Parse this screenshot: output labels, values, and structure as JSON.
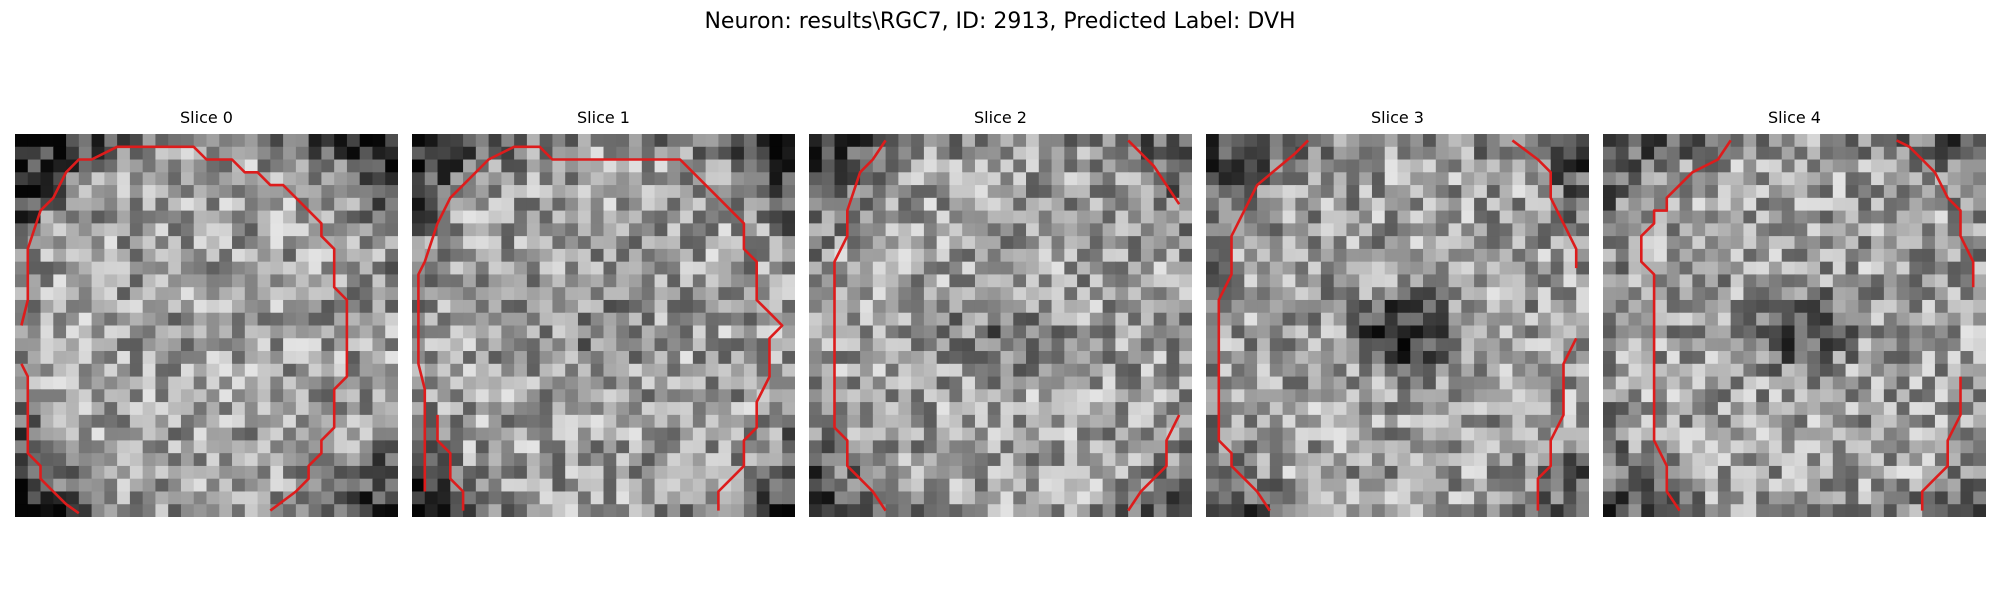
{
  "figure": {
    "title": "Neuron: results\\RGC7, ID: 2913, Predicted Label: DVH"
  },
  "panels": [
    {
      "title": "Slice 0",
      "seed": 11,
      "outline_color": "#dd1c1c",
      "center_darkness": 0.0,
      "edge_darkness": 0.55
    },
    {
      "title": "Slice 1",
      "seed": 23,
      "outline_color": "#dd1c1c",
      "center_darkness": 0.15,
      "edge_darkness": 0.45
    },
    {
      "title": "Slice 2",
      "seed": 37,
      "outline_color": "#dd1c1c",
      "center_darkness": 0.2,
      "edge_darkness": 0.35
    },
    {
      "title": "Slice 3",
      "seed": 51,
      "outline_color": "#dd1c1c",
      "center_darkness": 0.55,
      "edge_darkness": 0.4
    },
    {
      "title": "Slice 4",
      "seed": 67,
      "outline_color": "#dd1c1c",
      "center_darkness": 0.35,
      "edge_darkness": 0.3
    }
  ],
  "colormap": "gray"
}
